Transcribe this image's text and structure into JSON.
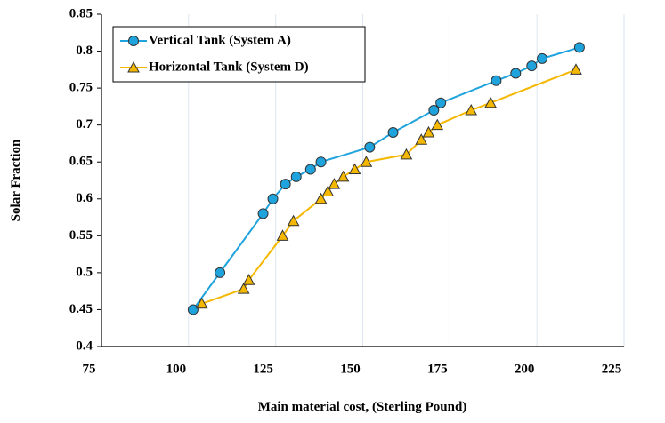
{
  "chart_data": {
    "type": "line",
    "x_label": "Main material cost, (Sterling Pound)",
    "y_label": "Solar Fraction",
    "xlim": [
      75,
      225
    ],
    "xticks": [
      75,
      100,
      125,
      150,
      175,
      200,
      225
    ],
    "ylim": [
      0.4,
      0.85
    ],
    "yticks": [
      0.4,
      0.45,
      0.5,
      0.55,
      0.6,
      0.65,
      0.7,
      0.75,
      0.8,
      0.85
    ],
    "grid": true,
    "legend": "upper left",
    "series": [
      {
        "name": "Vertical Tank (System A)",
        "color": "#1fa3dd",
        "marker": "circle",
        "x": [
          101.3,
          109,
          121.4,
          124.2,
          127.8,
          130.9,
          135,
          138,
          152,
          158.7,
          170.4,
          172.4,
          188.3,
          193.9,
          198.5,
          201.5,
          212.2
        ],
        "values": [
          0.45,
          0.5,
          0.58,
          0.6,
          0.62,
          0.63,
          0.64,
          0.65,
          0.67,
          0.69,
          0.72,
          0.73,
          0.76,
          0.77,
          0.78,
          0.79,
          0.805
        ]
      },
      {
        "name": "Horizontal Tank (System D)",
        "color": "#f5b800",
        "marker": "triangle",
        "x": [
          103.8,
          115.8,
          117.3,
          127,
          130.1,
          138,
          140,
          141.8,
          144.4,
          147.7,
          151,
          162.5,
          166.8,
          168.9,
          171.4,
          181.1,
          186.7,
          211.2
        ],
        "values": [
          0.458,
          0.478,
          0.49,
          0.55,
          0.57,
          0.6,
          0.61,
          0.62,
          0.63,
          0.64,
          0.65,
          0.66,
          0.68,
          0.69,
          0.7,
          0.72,
          0.73,
          0.775
        ]
      }
    ]
  }
}
